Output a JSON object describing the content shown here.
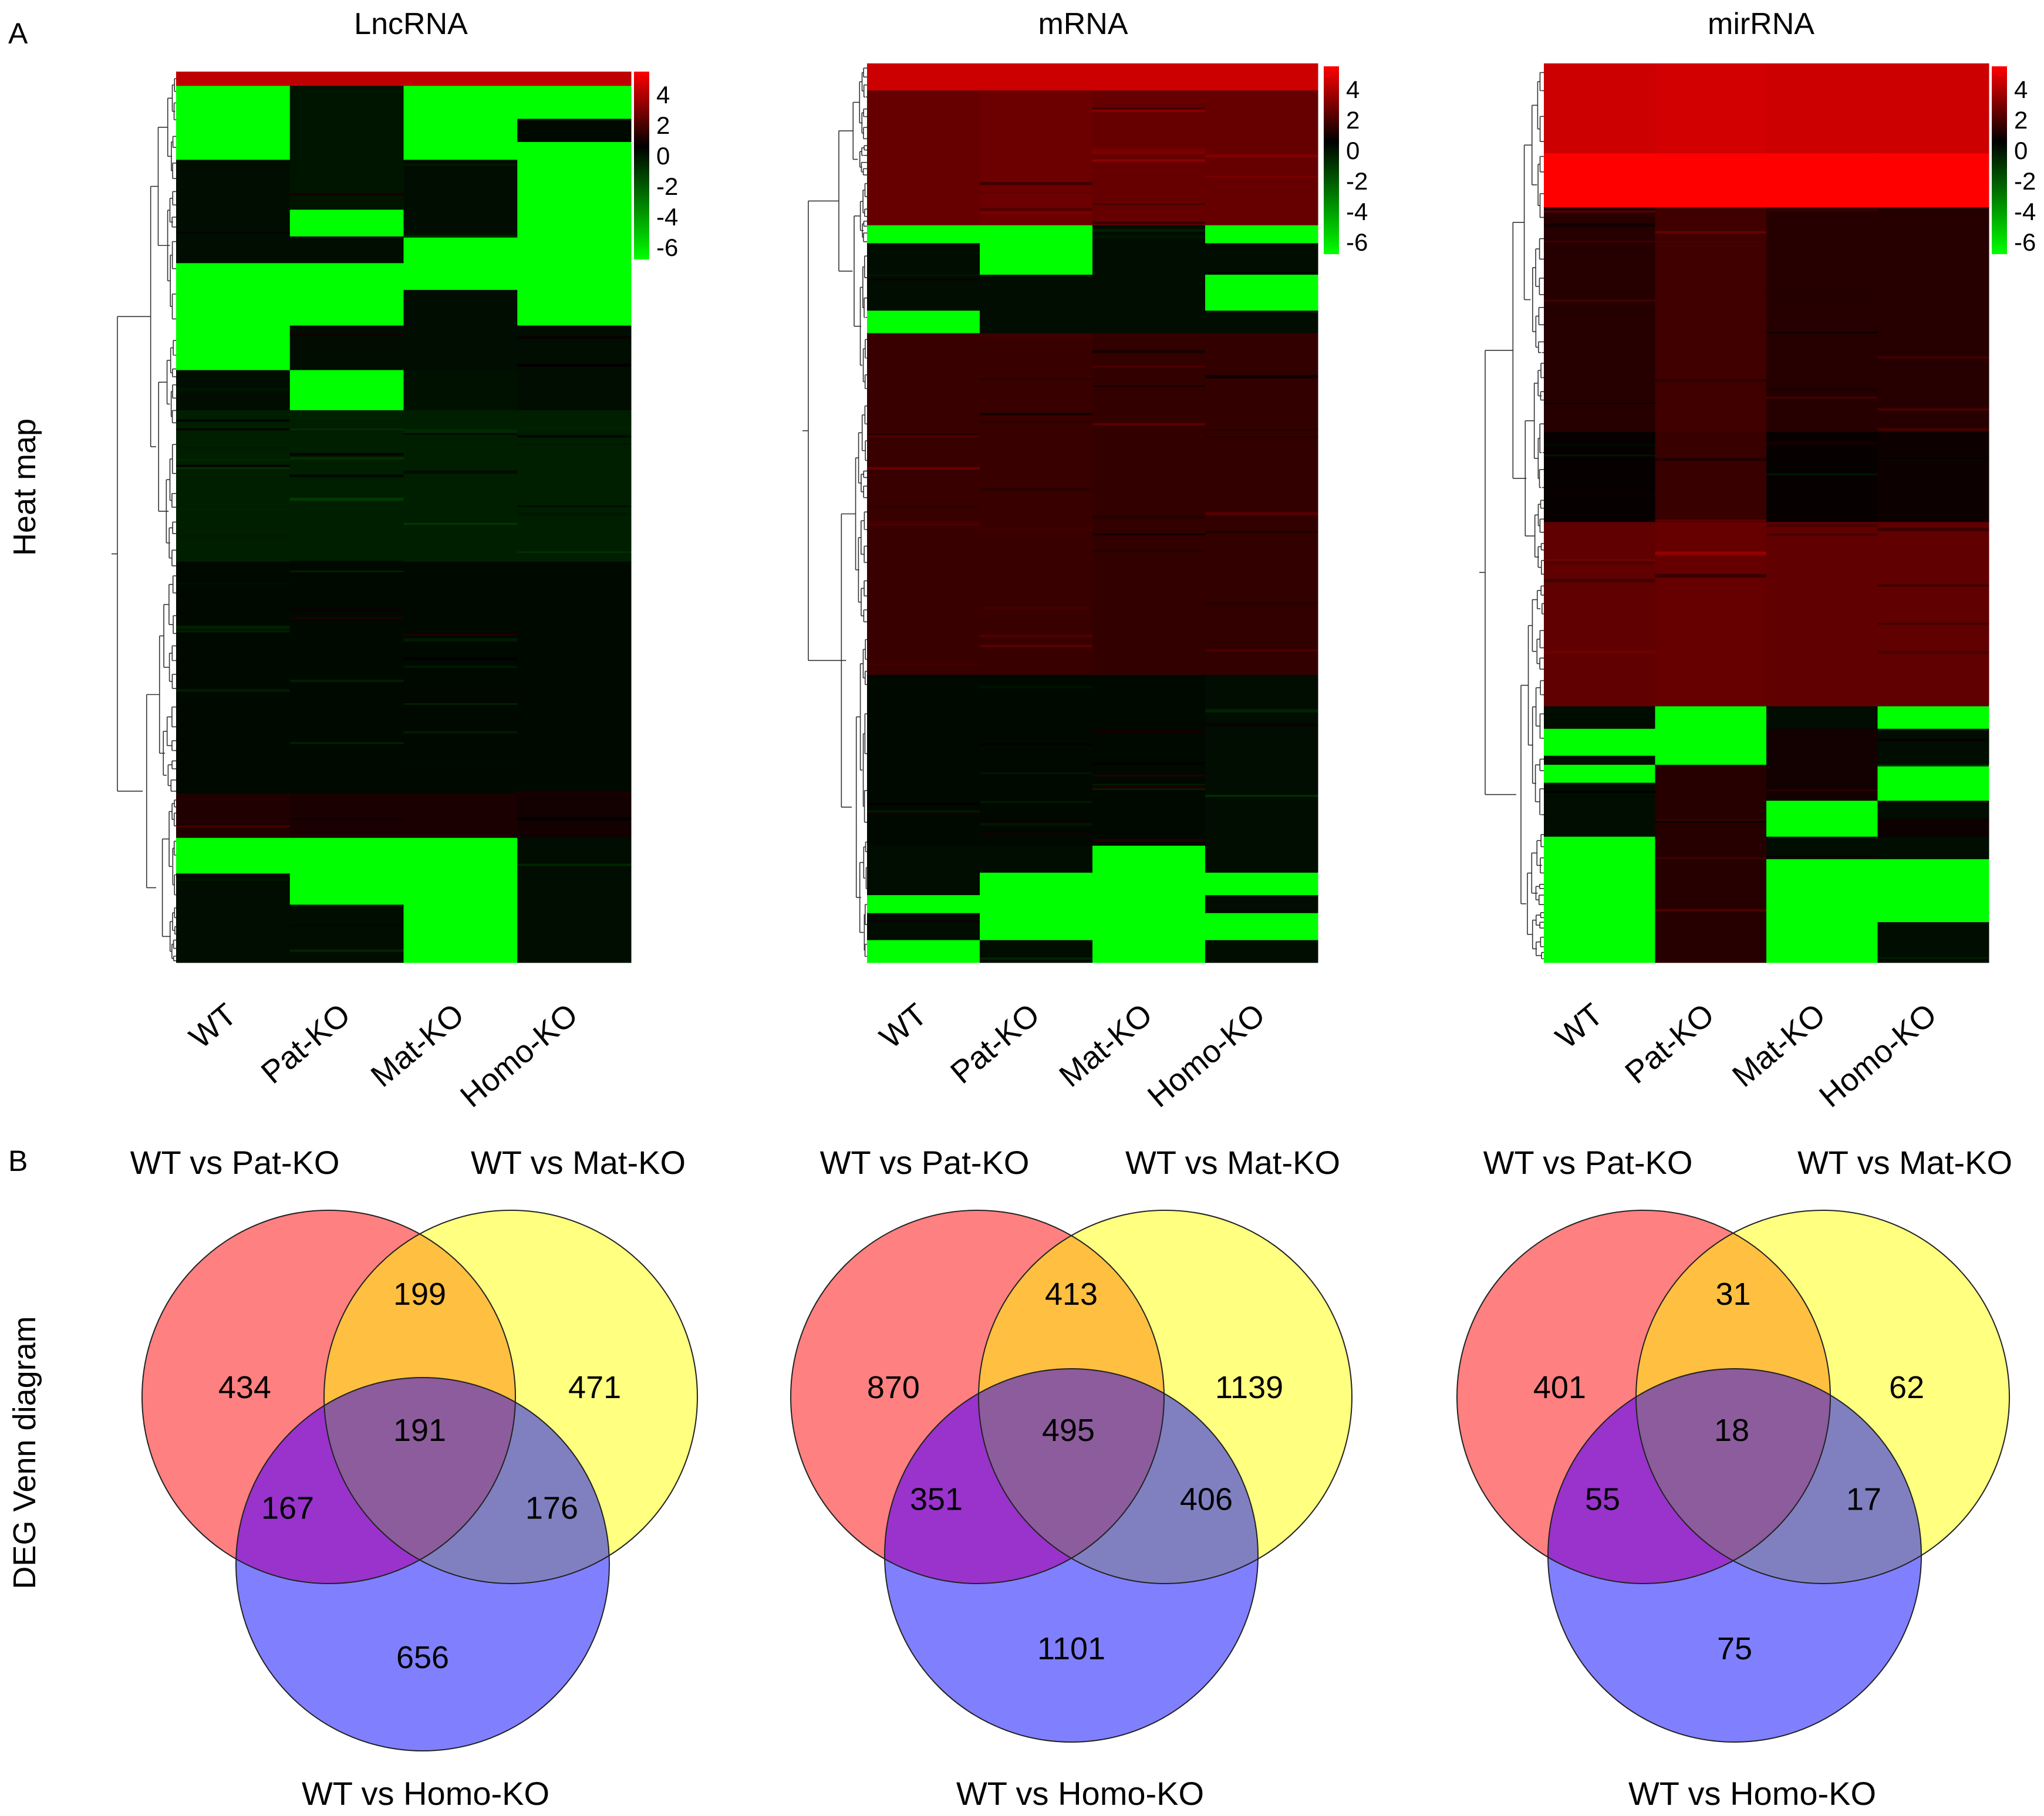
{
  "figure": {
    "panel_a_letter": "A",
    "panel_b_letter": "B",
    "row_label_a": "Heat map",
    "row_label_b": "DEG Venn diagram"
  },
  "colors": {
    "low": "#00ff00",
    "mid": "#000000",
    "high": "#ff0000",
    "set1": "#ff8080",
    "set2": "#ffff80",
    "set3": "#8080ff",
    "over12": "#ffbf40",
    "over13": "#9933cc",
    "over23": "#8080c0",
    "over123": "#8c5c9c"
  },
  "chart_data": [
    {
      "type": "heatmap",
      "title": "LncRNA",
      "columns": [
        "WT",
        "Pat-KO",
        "Mat-KO",
        "Homo-KO"
      ],
      "colorbar": {
        "ticks": [
          "4",
          "2",
          "0",
          "-2",
          "-4",
          "-6"
        ],
        "range": [
          -6,
          4
        ]
      },
      "blocks": [
        {
          "rows": [
            0,
            0.016
          ],
          "values": [
            3,
            3,
            3,
            3
          ]
        },
        {
          "rows": [
            0.016,
            0.053
          ],
          "values": [
            -6,
            -0.5,
            -6,
            -6
          ]
        },
        {
          "rows": [
            0.053,
            0.079
          ],
          "values": [
            -6,
            -0.5,
            -6,
            -0.2
          ]
        },
        {
          "rows": [
            0.079,
            0.099
          ],
          "values": [
            -6,
            -0.5,
            -6,
            -6
          ]
        },
        {
          "rows": [
            0.099,
            0.155
          ],
          "values": [
            -0.3,
            -0.5,
            -0.3,
            -6
          ]
        },
        {
          "rows": [
            0.155,
            0.185
          ],
          "values": [
            -0.3,
            -6,
            -0.3,
            -6
          ]
        },
        {
          "rows": [
            0.185,
            0.215
          ],
          "values": [
            -0.3,
            -0.3,
            -6,
            -6
          ]
        },
        {
          "rows": [
            0.215,
            0.245
          ],
          "values": [
            -6,
            -6,
            -6,
            -6
          ]
        },
        {
          "rows": [
            0.245,
            0.285
          ],
          "values": [
            -6,
            -6,
            -0.3,
            -6
          ]
        },
        {
          "rows": [
            0.285,
            0.335
          ],
          "values": [
            -6,
            -0.3,
            -0.3,
            -0.3
          ]
        },
        {
          "rows": [
            0.335,
            0.38
          ],
          "values": [
            -0.3,
            -6,
            -0.4,
            -0.3
          ]
        },
        {
          "rows": [
            0.38,
            0.55
          ],
          "values": [
            -0.7,
            -0.7,
            -0.7,
            -0.7
          ]
        },
        {
          "rows": [
            0.55,
            0.81
          ],
          "values": [
            -0.2,
            -0.2,
            -0.2,
            -0.2
          ]
        },
        {
          "rows": [
            0.81,
            0.86
          ],
          "values": [
            0.5,
            0.4,
            0.4,
            0.3
          ]
        },
        {
          "rows": [
            0.86,
            0.9
          ],
          "values": [
            -6,
            -6,
            -6,
            -0.3
          ]
        },
        {
          "rows": [
            0.9,
            0.935
          ],
          "values": [
            -0.3,
            -6,
            -6,
            -0.3
          ]
        },
        {
          "rows": [
            0.935,
            1.0
          ],
          "values": [
            -0.3,
            -0.3,
            -6,
            -0.3
          ]
        }
      ]
    },
    {
      "type": "heatmap",
      "title": "mRNA",
      "columns": [
        "WT",
        "Pat-KO",
        "Mat-KO",
        "Homo-KO"
      ],
      "colorbar": {
        "ticks": [
          "4",
          "2",
          "0",
          "-2",
          "-4",
          "-6"
        ],
        "range": [
          -6,
          4
        ]
      },
      "blocks": [
        {
          "rows": [
            0,
            0.03
          ],
          "values": [
            3.2,
            3.2,
            3.2,
            3.2
          ]
        },
        {
          "rows": [
            0.03,
            0.18
          ],
          "values": [
            1.6,
            1.7,
            1.6,
            1.6
          ]
        },
        {
          "rows": [
            0.18,
            0.2
          ],
          "values": [
            -6,
            -6,
            -0.3,
            -6
          ]
        },
        {
          "rows": [
            0.2,
            0.235
          ],
          "values": [
            -0.3,
            -6,
            -0.3,
            -0.3
          ]
        },
        {
          "rows": [
            0.235,
            0.275
          ],
          "values": [
            -0.3,
            -0.3,
            -0.3,
            -6
          ]
        },
        {
          "rows": [
            0.275,
            0.3
          ],
          "values": [
            -6,
            -0.3,
            -0.3,
            -0.3
          ]
        },
        {
          "rows": [
            0.3,
            0.68
          ],
          "values": [
            0.9,
            0.9,
            0.8,
            0.8
          ]
        },
        {
          "rows": [
            0.68,
            0.87
          ],
          "values": [
            -0.2,
            -0.2,
            -0.2,
            -0.3
          ]
        },
        {
          "rows": [
            0.87,
            0.9
          ],
          "values": [
            -0.3,
            -0.3,
            -6,
            -0.3
          ]
        },
        {
          "rows": [
            0.9,
            0.925
          ],
          "values": [
            -0.3,
            -6,
            -6,
            -6
          ]
        },
        {
          "rows": [
            0.925,
            0.945
          ],
          "values": [
            -6,
            -6,
            -6,
            -0.3
          ]
        },
        {
          "rows": [
            0.945,
            0.975
          ],
          "values": [
            -0.3,
            -6,
            -6,
            -6
          ]
        },
        {
          "rows": [
            0.975,
            1.0
          ],
          "values": [
            -6,
            -0.3,
            -6,
            -0.3
          ]
        }
      ]
    },
    {
      "type": "heatmap",
      "title": "mirRNA",
      "columns": [
        "WT",
        "Pat-KO",
        "Mat-KO",
        "Homo-KO"
      ],
      "colorbar": {
        "ticks": [
          "4",
          "2",
          "0",
          "-2",
          "-4",
          "-6"
        ],
        "range": [
          -6,
          4
        ]
      },
      "blocks": [
        {
          "rows": [
            0,
            0.1
          ],
          "values": [
            3.2,
            3.3,
            3.2,
            3.2
          ]
        },
        {
          "rows": [
            0.1,
            0.16
          ],
          "values": [
            4,
            4,
            4,
            4
          ]
        },
        {
          "rows": [
            0.16,
            0.41
          ],
          "values": [
            0.6,
            1,
            0.6,
            0.6
          ]
        },
        {
          "rows": [
            0.41,
            0.51
          ],
          "values": [
            0.1,
            0.9,
            0.1,
            0.2
          ]
        },
        {
          "rows": [
            0.51,
            0.715
          ],
          "values": [
            1.5,
            1.6,
            1.5,
            1.5
          ]
        },
        {
          "rows": [
            0.715,
            0.74
          ],
          "values": [
            -0.3,
            -6,
            -0.3,
            -6
          ]
        },
        {
          "rows": [
            0.74,
            0.77
          ],
          "values": [
            -6,
            -6,
            0.3,
            -0.3
          ]
        },
        {
          "rows": [
            0.77,
            0.78
          ],
          "values": [
            -0.3,
            -6,
            0.3,
            -0.3
          ]
        },
        {
          "rows": [
            0.78,
            0.8
          ],
          "values": [
            -6,
            0.6,
            0.3,
            -6
          ]
        },
        {
          "rows": [
            0.8,
            0.82
          ],
          "values": [
            -0.3,
            0.6,
            0.3,
            -6
          ]
        },
        {
          "rows": [
            0.82,
            0.84
          ],
          "values": [
            -0.3,
            0.6,
            -6,
            -0.3
          ]
        },
        {
          "rows": [
            0.84,
            0.86
          ],
          "values": [
            -0.3,
            0.6,
            -6,
            0.2
          ]
        },
        {
          "rows": [
            0.86,
            0.885
          ],
          "values": [
            -6,
            0.6,
            -0.3,
            -0.3
          ]
        },
        {
          "rows": [
            0.885,
            0.955
          ],
          "values": [
            -6,
            0.6,
            -6,
            -6
          ]
        },
        {
          "rows": [
            0.955,
            1.0
          ],
          "values": [
            -6,
            0.6,
            -6,
            -0.3
          ]
        }
      ]
    },
    {
      "type": "venn",
      "sets": [
        "WT vs Pat-KO",
        "WT vs Mat-KO",
        "WT vs Homo-KO"
      ],
      "regions": {
        "only_pat": 434,
        "only_mat": 471,
        "only_homo": 656,
        "pat_mat": 199,
        "pat_homo": 167,
        "mat_homo": 176,
        "all": 191
      }
    },
    {
      "type": "venn",
      "sets": [
        "WT vs Pat-KO",
        "WT vs Mat-KO",
        "WT vs Homo-KO"
      ],
      "regions": {
        "only_pat": 870,
        "only_mat": 1139,
        "only_homo": 1101,
        "pat_mat": 413,
        "pat_homo": 351,
        "mat_homo": 406,
        "all": 495
      }
    },
    {
      "type": "venn",
      "sets": [
        "WT vs Pat-KO",
        "WT vs Mat-KO",
        "WT vs Homo-KO"
      ],
      "regions": {
        "only_pat": 401,
        "only_mat": 62,
        "only_homo": 75,
        "pat_mat": 31,
        "pat_homo": 55,
        "mat_homo": 17,
        "all": 18
      }
    }
  ]
}
